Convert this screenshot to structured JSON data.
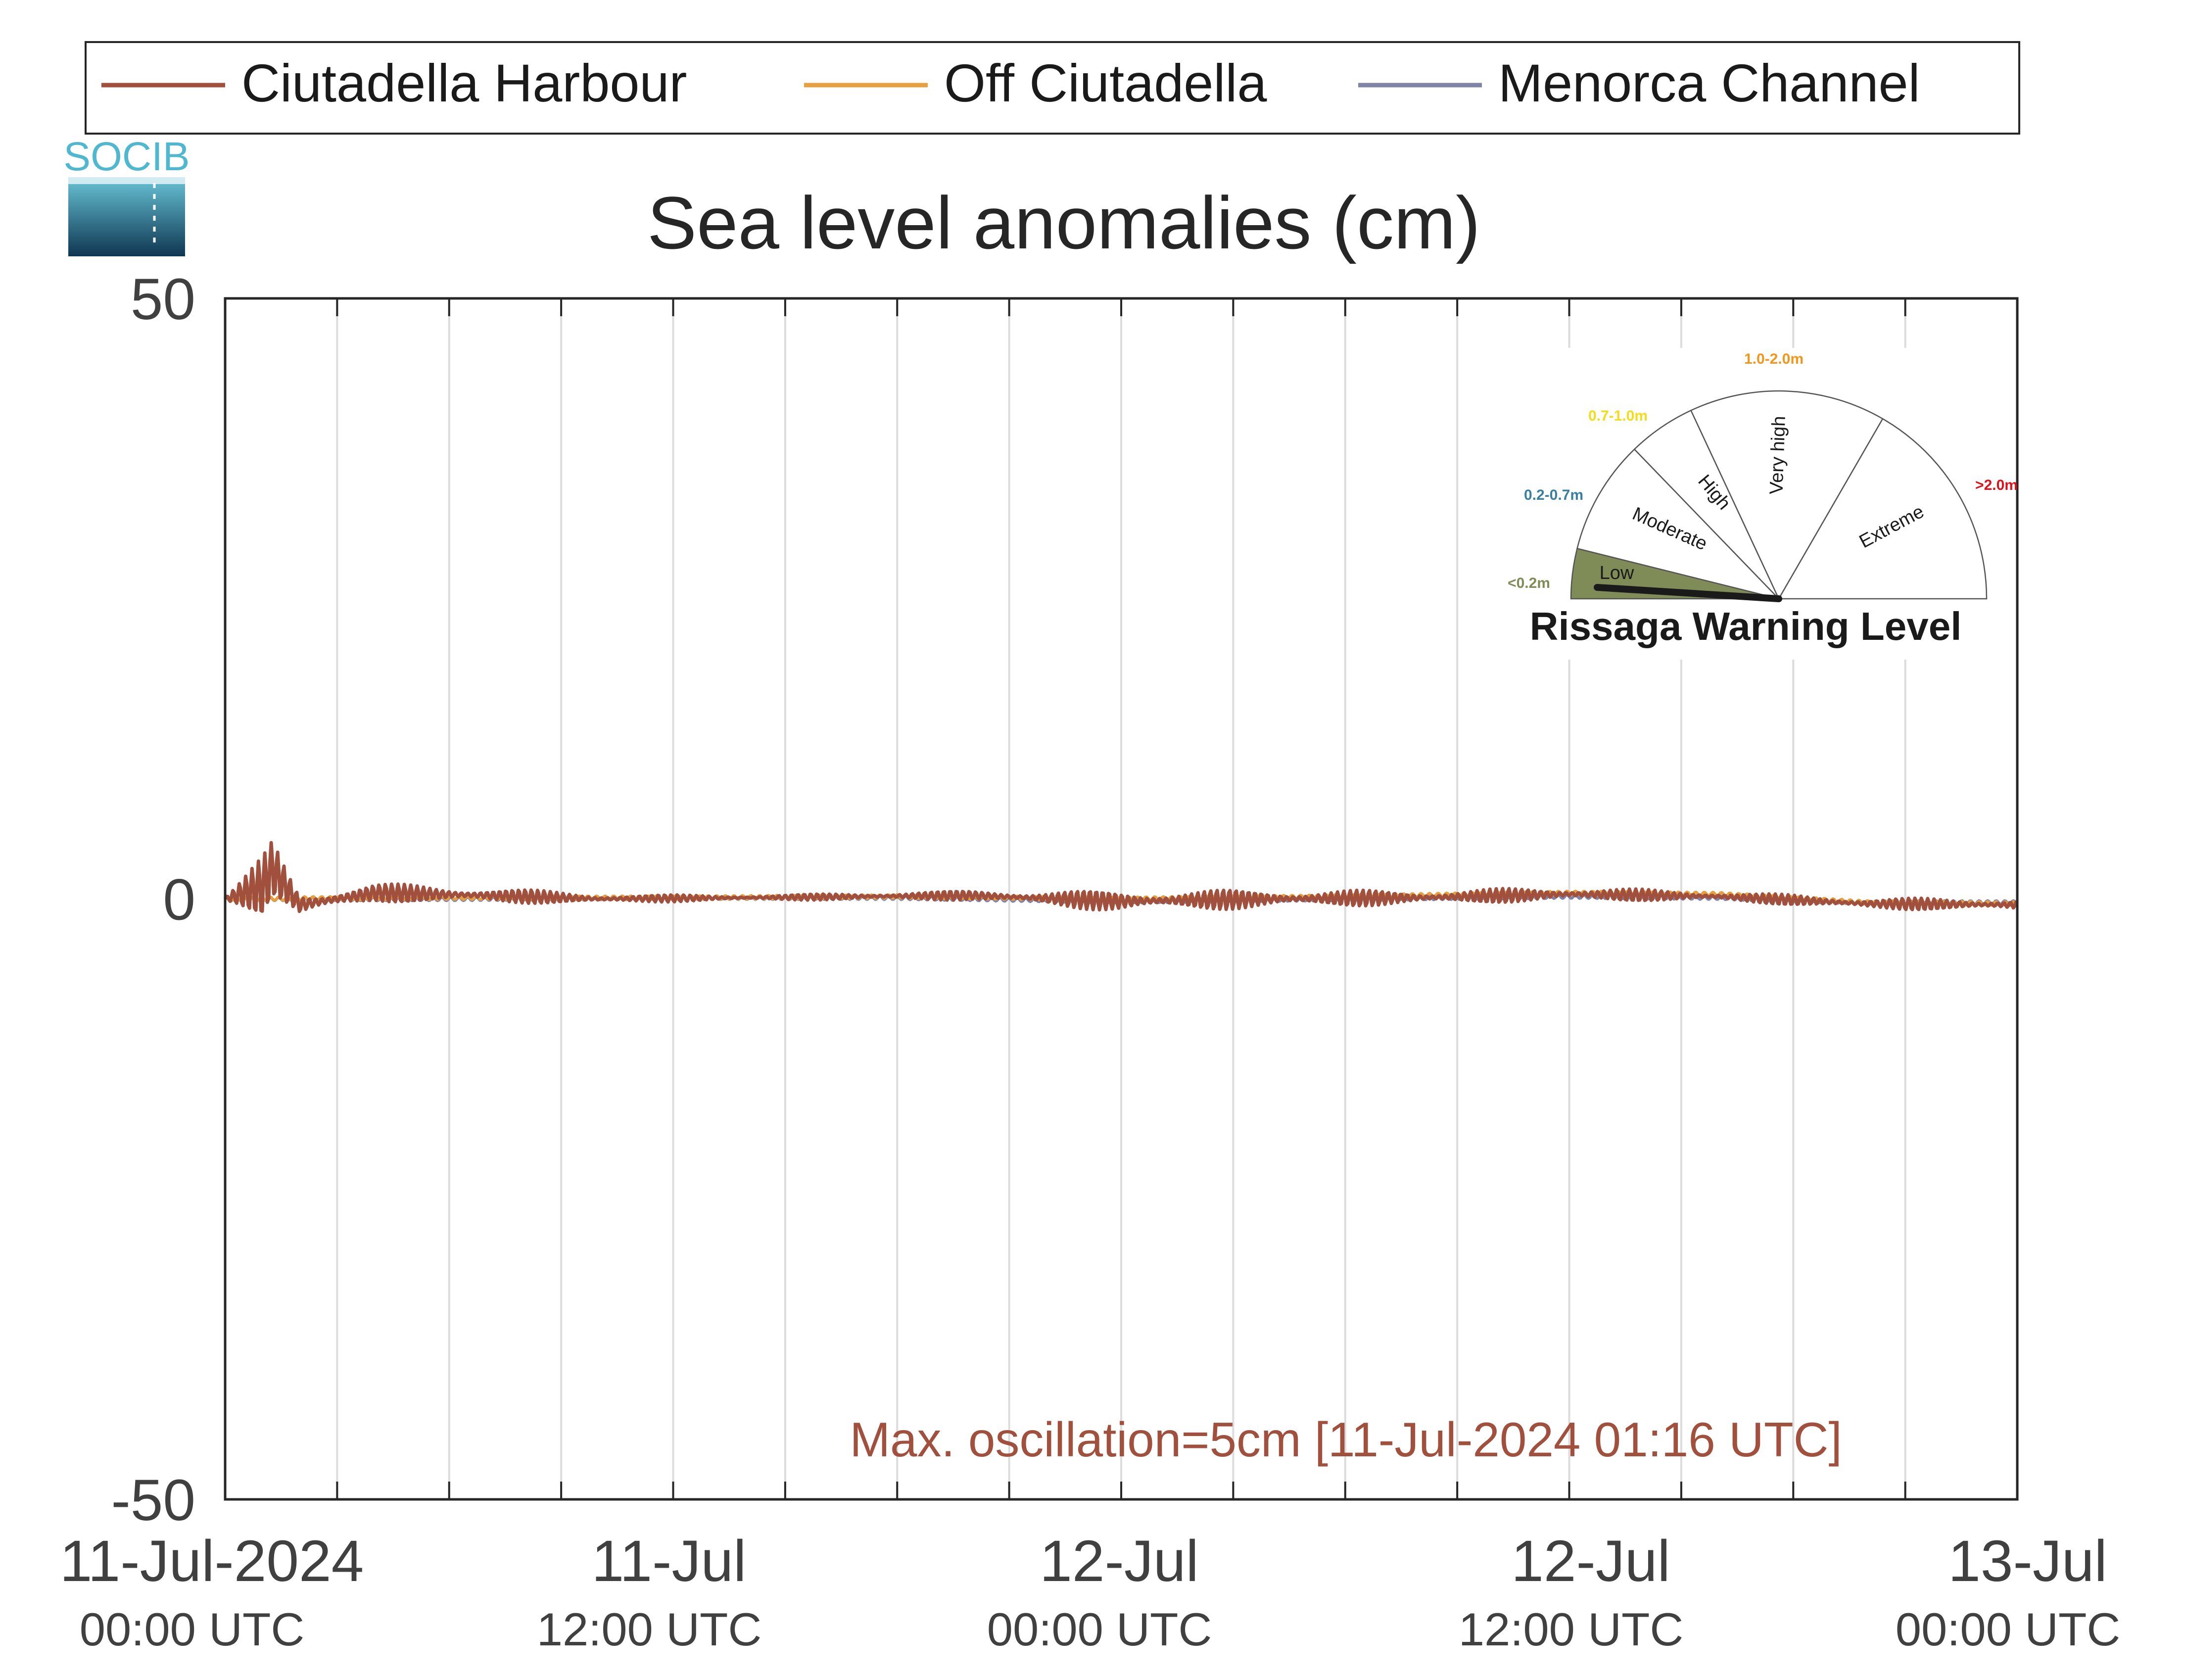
{
  "chart_data": {
    "type": "line",
    "title": "Sea level anomalies (cm)",
    "ylim": [
      -50,
      50
    ],
    "yticks": [
      50,
      0,
      -50
    ],
    "ytick_labels": [
      "50",
      "0",
      "-50"
    ],
    "xlim": [
      "2024-07-11T00:00",
      "2024-07-13T00:00"
    ],
    "xtick_labels": [
      {
        "date": "11-Jul-2024",
        "time": "00:00 UTC"
      },
      {
        "date": "11-Jul",
        "time": "12:00 UTC"
      },
      {
        "date": "12-Jul",
        "time": "00:00 UTC"
      },
      {
        "date": "12-Jul",
        "time": "12:00 UTC"
      },
      {
        "date": "13-Jul",
        "time": "00:00 UTC"
      }
    ],
    "grid": "vertical every 3 h",
    "legend_position": "top",
    "series": [
      {
        "name": "Ciutadella Harbour",
        "color": "#a0503c",
        "x": [
          "2024-07-11T00:00",
          "2024-07-11T01:00",
          "2024-07-11T01:16",
          "2024-07-11T02:00",
          "2024-07-11T04:00",
          "2024-07-11T07:00",
          "2024-07-11T10:00",
          "2024-07-11T14:00",
          "2024-07-11T20:00",
          "2024-07-12T00:00",
          "2024-07-12T04:00",
          "2024-07-12T08:00",
          "2024-07-12T12:00",
          "2024-07-12T16:00",
          "2024-07-12T20:00",
          "2024-07-13T00:00"
        ],
        "y": [
          0,
          1,
          2.5,
          -0.5,
          0.5,
          0.3,
          0,
          0.1,
          0.3,
          -0.2,
          0,
          0.1,
          0.4,
          0.2,
          -0.4,
          -0.5
        ],
        "amplitude": [
          0.2,
          2.5,
          2.5,
          1.2,
          0.8,
          0.7,
          0.4,
          0.2,
          0.4,
          0.9,
          0.8,
          0.6,
          0.6,
          0.4,
          0.5,
          0.5
        ]
      },
      {
        "name": "Off Ciutadella",
        "color": "#e6a040",
        "x": [
          "2024-07-11T00:00",
          "2024-07-11T06:00",
          "2024-07-11T12:00",
          "2024-07-11T18:00",
          "2024-07-12T00:00",
          "2024-07-12T06:00",
          "2024-07-12T12:00",
          "2024-07-12T16:00",
          "2024-07-12T20:00",
          "2024-07-13T00:00"
        ],
        "y": [
          0,
          0.1,
          0.1,
          0.2,
          0,
          0.2,
          0.5,
          0.4,
          -0.3,
          -0.4
        ]
      },
      {
        "name": "Menorca Channel",
        "color": "#7f84a8",
        "x": [
          "2024-07-11T00:00",
          "2024-07-11T06:00",
          "2024-07-11T12:00",
          "2024-07-11T18:00",
          "2024-07-12T00:00",
          "2024-07-12T06:00",
          "2024-07-12T12:00",
          "2024-07-12T16:00",
          "2024-07-12T20:00",
          "2024-07-13T00:00"
        ],
        "y": [
          0,
          0,
          0.1,
          0.1,
          -0.2,
          0,
          0.2,
          0.1,
          -0.3,
          -0.3
        ]
      }
    ],
    "annotation": {
      "text": "Max. oscillation=5cm [11-Jul-2024 01:16 UTC]",
      "color": "#a0503c"
    },
    "logo": {
      "text": "SOCIB"
    },
    "warning_gauge": {
      "title": "Rissaga Warning Level",
      "current_level": "Low",
      "levels": [
        {
          "name": "Low",
          "range": "<0.2m",
          "color": "#7f8c58"
        },
        {
          "name": "Moderate",
          "range": "0.2-0.7m",
          "color": "#3b7fa0"
        },
        {
          "name": "High",
          "range": "0.7-1.0m",
          "color": "#f2dd1a"
        },
        {
          "name": "Very high",
          "range": "1.0-2.0m",
          "color": "#f2961c"
        },
        {
          "name": "Extreme",
          "range": ">2.0m",
          "color": "#d9141c"
        }
      ]
    }
  }
}
